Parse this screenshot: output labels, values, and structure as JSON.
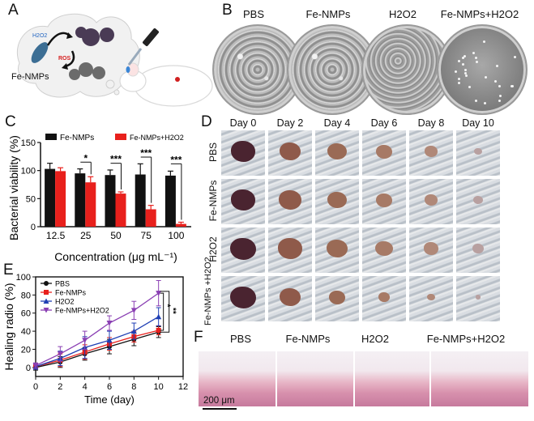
{
  "panels": {
    "a": "A",
    "b": "B",
    "c": "C",
    "d": "D",
    "e": "E",
    "f": "F"
  },
  "panel_a": {
    "h2o2_label": "H2O2",
    "ros_label": "ROS",
    "fe_nmps_label": "Fe-NMPs"
  },
  "panel_b": {
    "dishes": [
      "PBS",
      "Fe-NMPs",
      "H2O2",
      "Fe-NMPs+H2O2"
    ]
  },
  "panel_d": {
    "days": [
      "Day 0",
      "Day 2",
      "Day 4",
      "Day 6",
      "Day 8",
      "Day 10"
    ],
    "rows": [
      "PBS",
      "Fe-NMPs",
      "H2O2",
      "Fe-NMPs +H2O2"
    ]
  },
  "panel_f": {
    "groups": [
      "PBS",
      "Fe-NMPs",
      "H2O2",
      "Fe-NMPs+H2O2"
    ],
    "scale_bar": "200 μm"
  },
  "chart_data": [
    {
      "type": "bar",
      "panel": "C",
      "categories": [
        "12.5",
        "25",
        "50",
        "75",
        "100"
      ],
      "series": [
        {
          "name": "Fe-NMPs",
          "color": "#111111",
          "values": [
            103,
            95,
            92,
            93,
            91
          ],
          "errors": [
            10,
            8,
            9,
            19,
            8
          ]
        },
        {
          "name": "Fe-NMPs+H2O2",
          "color": "#e8201c",
          "values": [
            99,
            79,
            59,
            31,
            5
          ],
          "errors": [
            6,
            10,
            3,
            7,
            3
          ]
        }
      ],
      "significance": [
        "*",
        "***",
        "***",
        "***"
      ],
      "xlabel": "Concentration (μg mL⁻¹)",
      "ylabel": "Bacterial viability (%)",
      "ylim": [
        0,
        150
      ],
      "yticks": [
        0,
        50,
        100,
        150
      ],
      "legend": "top"
    },
    {
      "type": "line",
      "panel": "E",
      "x": [
        0,
        2,
        4,
        6,
        8,
        10
      ],
      "series": [
        {
          "name": "PBS",
          "color": "#111111",
          "marker": "circle",
          "values": [
            0,
            6,
            15,
            23,
            31,
            39
          ],
          "errors": [
            3,
            6,
            7,
            8,
            7,
            6
          ]
        },
        {
          "name": "Fe-NMPs",
          "color": "#e8201c",
          "marker": "square",
          "values": [
            1,
            8,
            17,
            26,
            34,
            41
          ],
          "errors": [
            3,
            7,
            8,
            7,
            6,
            5
          ]
        },
        {
          "name": "H2O2",
          "color": "#1f3fb4",
          "marker": "triangle",
          "values": [
            1,
            10,
            22,
            30,
            40,
            56
          ],
          "errors": [
            3,
            8,
            12,
            10,
            9,
            10
          ]
        },
        {
          "name": "Fe-NMPs+H2O2",
          "color": "#8a3fb3",
          "marker": "triangle-down",
          "values": [
            2,
            15,
            30,
            49,
            63,
            82
          ],
          "errors": [
            3,
            8,
            10,
            8,
            10,
            14
          ]
        }
      ],
      "significance": [
        "*",
        "**"
      ],
      "xlabel": "Time (day)",
      "ylabel": "Healing radio (%)",
      "xlim": [
        0,
        12
      ],
      "ylim": [
        -10,
        100
      ],
      "xticks": [
        0,
        2,
        4,
        6,
        8,
        10,
        12
      ],
      "yticks": [
        0,
        20,
        40,
        60,
        80,
        100
      ],
      "legend": "top-left"
    }
  ]
}
